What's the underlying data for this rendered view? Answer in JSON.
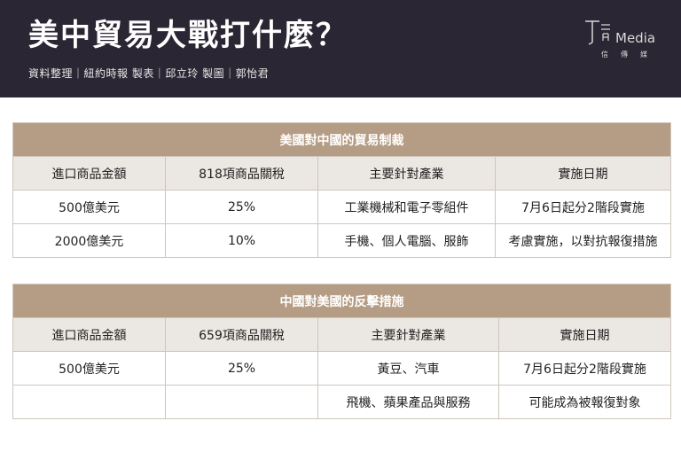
{
  "header": {
    "title": "美中貿易大戰打什麼？",
    "credits": "資料整理｜紐約時報 製表｜邱立玲 製圖｜郭怡君",
    "logo_text": "Media",
    "logo_sub": "信傳媒"
  },
  "table1": {
    "caption": "美國對中國的貿易制裁",
    "columns": [
      "進口商品金額",
      "818項商品關稅",
      "主要針對產業",
      "實施日期"
    ],
    "rows": [
      [
        "500億美元",
        "25%",
        "工業機械和電子零組件",
        "7月6日起分2階段實施"
      ],
      [
        "2000億美元",
        "10%",
        "手機、個人電腦、服飾",
        "考慮實施，以對抗報復措施"
      ]
    ]
  },
  "table2": {
    "caption": "中國對美國的反擊措施",
    "columns": [
      "進口商品金額",
      "659項商品關稅",
      "主要針對產業",
      "實施日期"
    ],
    "rows": [
      [
        "500億美元",
        "25%",
        "黃豆、汽車",
        "7月6日起分2階段實施"
      ],
      [
        "",
        "",
        "飛機、蘋果產品與服務",
        "可能成為被報復對象"
      ]
    ]
  },
  "colors": {
    "header_bg": "#2b2633",
    "caption_bg": "#b59c84",
    "column_head_bg": "#ebe7e2"
  }
}
